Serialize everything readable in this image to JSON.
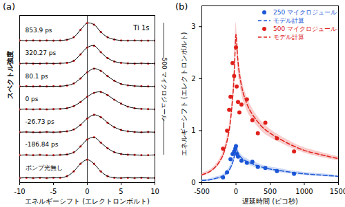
{
  "chart_data": [
    {
      "type": "line",
      "panel_label": "(a)",
      "xlabel": "エネルギーシフト (エレクトロンボルト)",
      "ylabel": "スペクトル強度",
      "annotation": "Ti 1s",
      "bracket_label": "500 マイクロジュール",
      "x": [
        -10,
        -9,
        -8,
        -7,
        -6,
        -5,
        -4,
        -3,
        -2,
        -1,
        0,
        1,
        2,
        3,
        4,
        5,
        6,
        7,
        8,
        9,
        10
      ],
      "xlim": [
        -10,
        10
      ],
      "xticks": [
        -10,
        -5,
        0,
        5,
        10
      ],
      "ylim": [
        -0.2,
        7.1
      ],
      "tick_labels": "x",
      "rule_x": 0,
      "marker": "circle",
      "color": "#e0201b",
      "series": [
        {
          "name": "853.9 ps",
          "values": [
            6.01,
            6,
            6.01,
            6,
            6.01,
            6,
            6.01,
            6.04,
            6.15,
            6.47,
            6.77,
            6.7,
            6.38,
            6.15,
            6.05,
            6.01,
            6,
            6.01,
            6,
            6,
            6
          ]
        },
        {
          "name": "320.27 ps",
          "values": [
            5,
            5.01,
            5,
            5,
            5.01,
            5,
            5.01,
            5.03,
            5.12,
            5.4,
            5.7,
            5.78,
            5.5,
            5.24,
            5.09,
            5.03,
            5.01,
            5,
            5.01,
            5,
            5
          ]
        },
        {
          "name": "80.1 ps",
          "values": [
            4,
            4.01,
            4,
            4.01,
            4,
            4.01,
            4.01,
            4.04,
            4.13,
            4.35,
            4.62,
            4.78,
            4.68,
            4.45,
            4.25,
            4.11,
            4.05,
            4.02,
            4.01,
            4,
            4
          ]
        },
        {
          "name": "0 ps",
          "values": [
            3,
            3.01,
            3,
            3.01,
            3,
            3.01,
            3.02,
            3.05,
            3.14,
            3.32,
            3.55,
            3.72,
            3.76,
            3.62,
            3.42,
            3.25,
            3.12,
            3.05,
            3.02,
            3.01,
            3
          ]
        },
        {
          "name": "-26.73 ps",
          "values": [
            2,
            2.01,
            2,
            2,
            2.01,
            2,
            2.01,
            2.04,
            2.12,
            2.32,
            2.6,
            2.76,
            2.66,
            2.42,
            2.22,
            2.1,
            2.04,
            2.01,
            2,
            2.01,
            2
          ]
        },
        {
          "name": "-186.84 ps",
          "values": [
            1,
            1.01,
            1,
            1.01,
            1,
            1,
            1.01,
            1.03,
            1.12,
            1.38,
            1.68,
            1.78,
            1.55,
            1.3,
            1.13,
            1.05,
            1.02,
            1.01,
            1,
            1,
            1.01
          ]
        },
        {
          "name": "ポンプ光無し",
          "values": [
            0,
            0.01,
            0,
            0.01,
            0,
            0.01,
            0.01,
            0.08,
            0.29,
            0.62,
            0.8,
            0.62,
            0.29,
            0.08,
            0.01,
            0,
            0.01,
            0,
            0.01,
            0,
            0
          ]
        }
      ]
    },
    {
      "type": "scatter",
      "panel_label": "(b)",
      "xlabel": "遅延時間 (ピコ秒)",
      "ylabel": "エネルギーシフト (エレクトロンボルト)",
      "xlim": [
        -500,
        1500
      ],
      "xticks": [
        -500,
        0,
        500,
        1000,
        1500
      ],
      "ylim": [
        0,
        3.4
      ],
      "yticks": [
        0,
        1,
        2,
        3
      ],
      "legend": "upper right",
      "series": [
        {
          "name": "250 マイクロジュール",
          "type": "scatter",
          "marker": "circle",
          "color": "#1a56d6",
          "x": [
            -190,
            -130,
            -80,
            -50,
            -27,
            -10,
            0,
            15,
            30,
            80,
            160,
            240,
            320,
            430,
            600,
            850
          ],
          "values": [
            0.1,
            0.2,
            0.45,
            0.55,
            0.6,
            0.65,
            0.7,
            0.55,
            0.5,
            0.42,
            0.38,
            0.4,
            0.3,
            0.28,
            0.22,
            0.17
          ]
        },
        {
          "name": "モデル計算",
          "type": "line",
          "line_style": "dashed",
          "color": "#1a56d6",
          "x": [
            -500,
            -400,
            -300,
            -200,
            -150,
            -100,
            -50,
            -25,
            0,
            25,
            50,
            100,
            150,
            200,
            300,
            400,
            500,
            600,
            800,
            1000,
            1200,
            1500
          ],
          "values": [
            0.04,
            0.05,
            0.08,
            0.12,
            0.17,
            0.24,
            0.38,
            0.5,
            0.66,
            0.58,
            0.52,
            0.45,
            0.41,
            0.38,
            0.33,
            0.29,
            0.26,
            0.24,
            0.2,
            0.17,
            0.15,
            0.12
          ],
          "band_lower": [
            0.02,
            0.03,
            0.05,
            0.09,
            0.13,
            0.19,
            0.31,
            0.42,
            0.57,
            0.5,
            0.45,
            0.39,
            0.35,
            0.33,
            0.28,
            0.25,
            0.22,
            0.2,
            0.17,
            0.14,
            0.12,
            0.1
          ],
          "band_upper": [
            0.06,
            0.07,
            0.11,
            0.15,
            0.21,
            0.29,
            0.45,
            0.58,
            0.75,
            0.66,
            0.59,
            0.51,
            0.47,
            0.43,
            0.38,
            0.33,
            0.3,
            0.28,
            0.23,
            0.2,
            0.18,
            0.14
          ]
        },
        {
          "name": "500 マイクロジュール",
          "type": "scatter",
          "marker": "circle",
          "color": "#e0201b",
          "x": [
            -190,
            -130,
            -100,
            -80,
            -50,
            -27,
            0,
            10,
            30,
            50,
            80,
            160,
            240,
            320,
            430,
            600,
            850
          ],
          "values": [
            0.65,
            1.0,
            1.4,
            1.65,
            2.3,
            2.05,
            2.6,
            1.85,
            1.55,
            1.35,
            1.5,
            1.6,
            1.2,
            0.95,
            1.15,
            0.85,
            0.6
          ]
        },
        {
          "name": "モデル計算",
          "type": "line",
          "line_style": "dashed",
          "color": "#e0201b",
          "x": [
            -500,
            -400,
            -300,
            -200,
            -150,
            -100,
            -50,
            -25,
            0,
            25,
            50,
            100,
            150,
            200,
            300,
            400,
            500,
            600,
            800,
            1000,
            1200,
            1500
          ],
          "values": [
            0.15,
            0.2,
            0.3,
            0.5,
            0.7,
            1.0,
            1.6,
            2.1,
            2.85,
            2.4,
            2.1,
            1.75,
            1.55,
            1.4,
            1.2,
            1.05,
            0.95,
            0.87,
            0.73,
            0.62,
            0.55,
            0.46
          ],
          "band_lower": [
            0.12,
            0.17,
            0.26,
            0.44,
            0.62,
            0.9,
            1.45,
            1.9,
            2.62,
            2.2,
            1.93,
            1.6,
            1.42,
            1.28,
            1.1,
            0.96,
            0.87,
            0.8,
            0.67,
            0.57,
            0.5,
            0.42
          ],
          "band_upper": [
            0.18,
            0.23,
            0.34,
            0.56,
            0.78,
            1.1,
            1.75,
            2.3,
            3.08,
            2.6,
            2.27,
            1.9,
            1.68,
            1.52,
            1.3,
            1.14,
            1.03,
            0.94,
            0.79,
            0.67,
            0.6,
            0.5
          ]
        }
      ]
    }
  ]
}
